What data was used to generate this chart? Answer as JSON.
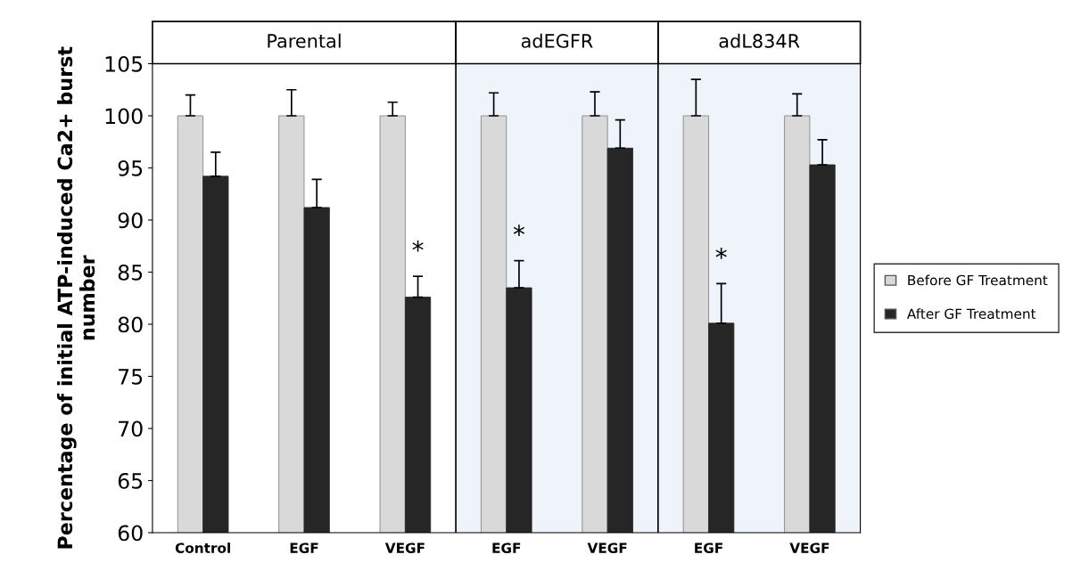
{
  "chart_data": {
    "type": "bar",
    "ylabel": "Percentage of initial ATP-induced Ca2+ burst number",
    "categories": [
      "Control",
      "EGF",
      "VEGF",
      "EGF",
      "VEGF",
      "EGF",
      "VEGF"
    ],
    "ylim": [
      60,
      105
    ],
    "yticks": [
      60,
      65,
      70,
      75,
      80,
      85,
      90,
      95,
      100,
      105
    ],
    "grid": false,
    "legend": "right",
    "series": [
      {
        "name": "Before GF Treatment",
        "color": "#d9d9d9",
        "values": [
          100,
          100,
          100,
          100,
          100,
          100,
          100
        ],
        "errors": [
          [
            100,
            102.0
          ],
          [
            100,
            102.5
          ],
          [
            100,
            101.3
          ],
          [
            100,
            102.2
          ],
          [
            100,
            102.3
          ],
          [
            100,
            103.5
          ],
          [
            100,
            102.1
          ]
        ]
      },
      {
        "name": "After GF Treatment",
        "color": "#262626",
        "values": [
          94.2,
          91.2,
          82.6,
          83.5,
          96.9,
          80.1,
          95.3
        ],
        "errors": [
          [
            94.2,
            96.5
          ],
          [
            91.2,
            93.9
          ],
          [
            82.6,
            84.6
          ],
          [
            83.5,
            86.1
          ],
          [
            96.9,
            99.6
          ],
          [
            80.1,
            83.9
          ],
          [
            95.3,
            97.7
          ]
        ]
      }
    ],
    "annotations": [
      "Parental",
      "adEGFR",
      "adL834R",
      "*",
      "*",
      "*"
    ]
  }
}
